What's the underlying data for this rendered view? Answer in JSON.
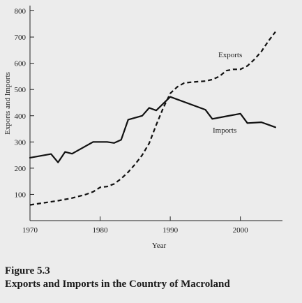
{
  "chart_data": {
    "type": "line",
    "xlabel": "Year",
    "ylabel": "Exports and Imports",
    "xlim": [
      1970,
      2006
    ],
    "ylim": [
      0,
      820
    ],
    "x_ticks": [
      1970,
      1980,
      1990,
      2000
    ],
    "y_ticks": [
      100,
      200,
      300,
      400,
      500,
      600,
      700,
      800
    ],
    "grid": false,
    "series": [
      {
        "name": "Exports",
        "style": "dashed",
        "color": "#111111",
        "points": [
          [
            1970,
            60
          ],
          [
            1972,
            68
          ],
          [
            1974,
            76
          ],
          [
            1976,
            86
          ],
          [
            1978,
            100
          ],
          [
            1979,
            110
          ],
          [
            1980,
            127
          ],
          [
            1981,
            130
          ],
          [
            1982,
            140
          ],
          [
            1983,
            160
          ],
          [
            1984,
            185
          ],
          [
            1985,
            215
          ],
          [
            1986,
            250
          ],
          [
            1987,
            295
          ],
          [
            1988,
            365
          ],
          [
            1989,
            430
          ],
          [
            1990,
            485
          ],
          [
            1991,
            510
          ],
          [
            1992,
            525
          ],
          [
            1993,
            528
          ],
          [
            1994,
            530
          ],
          [
            1995,
            532
          ],
          [
            1996,
            538
          ],
          [
            1997,
            550
          ],
          [
            1998,
            572
          ],
          [
            1999,
            577
          ],
          [
            2000,
            577
          ],
          [
            2001,
            590
          ],
          [
            2002,
            615
          ],
          [
            2003,
            645
          ],
          [
            2004,
            685
          ],
          [
            2005,
            720
          ]
        ]
      },
      {
        "name": "Imports",
        "style": "solid",
        "color": "#111111",
        "points": [
          [
            1970,
            240
          ],
          [
            1973,
            254
          ],
          [
            1974,
            222
          ],
          [
            1975,
            262
          ],
          [
            1976,
            255
          ],
          [
            1979,
            300
          ],
          [
            1980,
            300
          ],
          [
            1981,
            300
          ],
          [
            1982,
            296
          ],
          [
            1983,
            308
          ],
          [
            1984,
            385
          ],
          [
            1986,
            400
          ],
          [
            1987,
            430
          ],
          [
            1988,
            420
          ],
          [
            1990,
            472
          ],
          [
            1995,
            423
          ],
          [
            1996,
            388
          ],
          [
            1998,
            398
          ],
          [
            2000,
            408
          ],
          [
            2001,
            372
          ],
          [
            2003,
            375
          ],
          [
            2005,
            356
          ]
        ]
      }
    ]
  },
  "labels": {
    "exports": "Exports",
    "imports": "Imports"
  },
  "caption": {
    "figure_number": "Figure 5.3",
    "title": "Exports and Imports in the Country of Macroland"
  }
}
